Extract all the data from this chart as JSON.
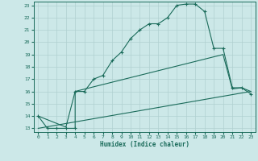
{
  "xlabel": "Humidex (Indice chaleur)",
  "bg_color": "#cce8e8",
  "grid_color": "#b0d0d0",
  "line_color": "#1a6b5a",
  "xlim": [
    -0.5,
    23.5
  ],
  "ylim": [
    12.7,
    23.3
  ],
  "yticks": [
    13,
    14,
    15,
    16,
    17,
    18,
    19,
    20,
    21,
    22,
    23
  ],
  "xticks": [
    0,
    1,
    2,
    3,
    4,
    5,
    6,
    7,
    8,
    9,
    10,
    11,
    12,
    13,
    14,
    15,
    16,
    17,
    18,
    19,
    20,
    21,
    22,
    23
  ],
  "line1_x": [
    0,
    1,
    2,
    3,
    4,
    4,
    5,
    6,
    7,
    8,
    9,
    10,
    11,
    12,
    13,
    14,
    15,
    16,
    17,
    18,
    19,
    20,
    21,
    22,
    23
  ],
  "line1_y": [
    14,
    13,
    13,
    13,
    13,
    16,
    16,
    17,
    17.3,
    18.5,
    19.2,
    20.3,
    21,
    21.5,
    21.5,
    22,
    23,
    23.1,
    23.1,
    22.5,
    19.5,
    19.5,
    16.3,
    16.3,
    15.8
  ],
  "line2_x": [
    0,
    3,
    4,
    20,
    21,
    22,
    23
  ],
  "line2_y": [
    14,
    13.1,
    16,
    19,
    16.2,
    16.3,
    16.0
  ],
  "line3_x": [
    0,
    23
  ],
  "line3_y": [
    13.0,
    16.0
  ],
  "figsize": [
    3.2,
    2.0
  ],
  "dpi": 100
}
